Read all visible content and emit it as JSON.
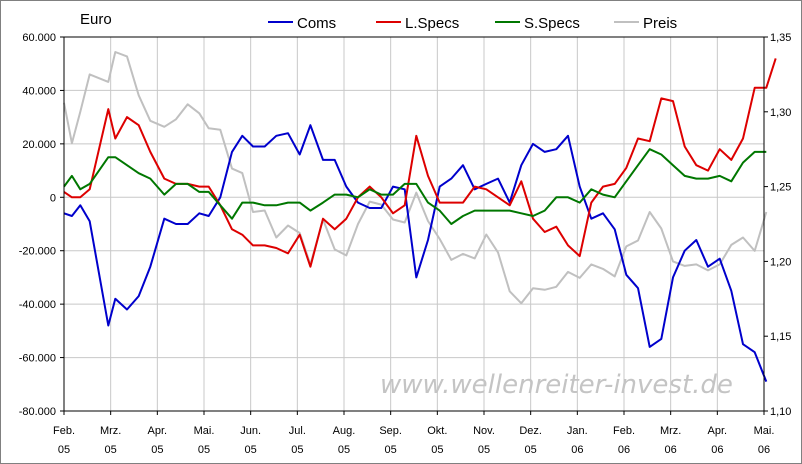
{
  "chart_data": {
    "type": "line",
    "y_unit_label": "Euro",
    "watermark": "www.wellenreiter-invest.de",
    "x_tick_labels": [
      {
        "month": "Feb.",
        "year": "05"
      },
      {
        "month": "Mrz.",
        "year": "05"
      },
      {
        "month": "Apr.",
        "year": "05"
      },
      {
        "month": "Mai.",
        "year": "05"
      },
      {
        "month": "Jun.",
        "year": "05"
      },
      {
        "month": "Jul.",
        "year": "05"
      },
      {
        "month": "Aug.",
        "year": "05"
      },
      {
        "month": "Sep.",
        "year": "05"
      },
      {
        "month": "Okt.",
        "year": "05"
      },
      {
        "month": "Nov.",
        "year": "05"
      },
      {
        "month": "Dez.",
        "year": "05"
      },
      {
        "month": "Jan.",
        "year": "06"
      },
      {
        "month": "Feb.",
        "year": "06"
      },
      {
        "month": "Mrz.",
        "year": "06"
      },
      {
        "month": "Apr.",
        "year": "06"
      },
      {
        "month": "Mai.",
        "year": "06"
      }
    ],
    "x_range_months": [
      0,
      15
    ],
    "y_left": {
      "range": [
        -80000,
        60000
      ],
      "ticks": [
        60000,
        40000,
        20000,
        0,
        -20000,
        -40000,
        -60000,
        -80000
      ],
      "tick_labels": [
        "60.000",
        "40.000",
        "20.000",
        "0",
        "-20.000",
        "-40.000",
        "-60.000",
        "-80.000"
      ]
    },
    "y_right": {
      "range": [
        1.1,
        1.35
      ],
      "ticks": [
        1.35,
        1.3,
        1.25,
        1.2,
        1.15,
        1.1
      ],
      "tick_labels": [
        "1,35",
        "1,30",
        "1,25",
        "1,20",
        "1,15",
        "1,10"
      ]
    },
    "grid": true,
    "legend_position": "top",
    "series": [
      {
        "name": "Coms",
        "color": "#0000cc",
        "axis": "left",
        "values": [
          [
            0.0,
            -6000
          ],
          [
            0.17,
            -7000
          ],
          [
            0.35,
            -3000
          ],
          [
            0.55,
            -9000
          ],
          [
            0.95,
            -48000
          ],
          [
            1.1,
            -38000
          ],
          [
            1.35,
            -42000
          ],
          [
            1.6,
            -37000
          ],
          [
            1.85,
            -26000
          ],
          [
            2.15,
            -8000
          ],
          [
            2.4,
            -10000
          ],
          [
            2.65,
            -10000
          ],
          [
            2.9,
            -6000
          ],
          [
            3.1,
            -7000
          ],
          [
            3.35,
            0
          ],
          [
            3.6,
            17000
          ],
          [
            3.82,
            23000
          ],
          [
            4.05,
            19000
          ],
          [
            4.3,
            19000
          ],
          [
            4.55,
            23000
          ],
          [
            4.8,
            24000
          ],
          [
            5.05,
            16000
          ],
          [
            5.28,
            27000
          ],
          [
            5.55,
            14000
          ],
          [
            5.8,
            14000
          ],
          [
            6.05,
            4000
          ],
          [
            6.3,
            -2000
          ],
          [
            6.55,
            -4000
          ],
          [
            6.8,
            -4000
          ],
          [
            7.05,
            4000
          ],
          [
            7.3,
            3000
          ],
          [
            7.55,
            -30000
          ],
          [
            7.8,
            -16000
          ],
          [
            8.05,
            4000
          ],
          [
            8.3,
            7000
          ],
          [
            8.55,
            12000
          ],
          [
            8.8,
            3000
          ],
          [
            9.05,
            5000
          ],
          [
            9.3,
            7000
          ],
          [
            9.55,
            -2000
          ],
          [
            9.8,
            12000
          ],
          [
            10.05,
            20000
          ],
          [
            10.3,
            17000
          ],
          [
            10.55,
            18000
          ],
          [
            10.8,
            23000
          ],
          [
            11.05,
            4000
          ],
          [
            11.3,
            -8000
          ],
          [
            11.55,
            -6000
          ],
          [
            11.8,
            -12000
          ],
          [
            12.05,
            -29000
          ],
          [
            12.3,
            -34000
          ],
          [
            12.55,
            -56000
          ],
          [
            12.8,
            -53000
          ],
          [
            13.05,
            -30000
          ],
          [
            13.3,
            -20000
          ],
          [
            13.55,
            -16000
          ],
          [
            13.8,
            -26000
          ],
          [
            14.05,
            -23000
          ],
          [
            14.3,
            -35000
          ],
          [
            14.55,
            -55000
          ],
          [
            14.8,
            -58000
          ],
          [
            15.05,
            -69000
          ]
        ]
      },
      {
        "name": "L.Specs",
        "color": "#dd0000",
        "axis": "left",
        "values": [
          [
            0.0,
            2000
          ],
          [
            0.17,
            0
          ],
          [
            0.35,
            0
          ],
          [
            0.55,
            3000
          ],
          [
            0.95,
            33000
          ],
          [
            1.1,
            22000
          ],
          [
            1.35,
            30000
          ],
          [
            1.6,
            27000
          ],
          [
            1.85,
            17000
          ],
          [
            2.15,
            7000
          ],
          [
            2.4,
            5000
          ],
          [
            2.65,
            5000
          ],
          [
            2.9,
            4000
          ],
          [
            3.1,
            4000
          ],
          [
            3.35,
            -3000
          ],
          [
            3.6,
            -12000
          ],
          [
            3.82,
            -14000
          ],
          [
            4.05,
            -18000
          ],
          [
            4.3,
            -18000
          ],
          [
            4.55,
            -19000
          ],
          [
            4.8,
            -21000
          ],
          [
            5.05,
            -14000
          ],
          [
            5.28,
            -26000
          ],
          [
            5.55,
            -8000
          ],
          [
            5.8,
            -12000
          ],
          [
            6.05,
            -8000
          ],
          [
            6.3,
            0
          ],
          [
            6.55,
            4000
          ],
          [
            6.8,
            0
          ],
          [
            7.05,
            -6000
          ],
          [
            7.3,
            -3000
          ],
          [
            7.55,
            23000
          ],
          [
            7.8,
            8000
          ],
          [
            8.05,
            -2000
          ],
          [
            8.3,
            -2000
          ],
          [
            8.55,
            -2000
          ],
          [
            8.8,
            4000
          ],
          [
            9.05,
            3000
          ],
          [
            9.3,
            0
          ],
          [
            9.55,
            -3000
          ],
          [
            9.8,
            6000
          ],
          [
            10.05,
            -8000
          ],
          [
            10.3,
            -13000
          ],
          [
            10.55,
            -11000
          ],
          [
            10.8,
            -18000
          ],
          [
            11.05,
            -22000
          ],
          [
            11.3,
            -2000
          ],
          [
            11.55,
            4000
          ],
          [
            11.8,
            5000
          ],
          [
            12.05,
            11000
          ],
          [
            12.3,
            22000
          ],
          [
            12.55,
            21000
          ],
          [
            12.8,
            37000
          ],
          [
            13.05,
            36000
          ],
          [
            13.3,
            19000
          ],
          [
            13.55,
            12000
          ],
          [
            13.8,
            10000
          ],
          [
            14.05,
            18000
          ],
          [
            14.3,
            14000
          ],
          [
            14.55,
            22000
          ],
          [
            14.8,
            41000
          ],
          [
            15.05,
            41000
          ],
          [
            15.25,
            52000
          ]
        ]
      },
      {
        "name": "S.Specs",
        "color": "#007700",
        "axis": "left",
        "values": [
          [
            0.0,
            4000
          ],
          [
            0.17,
            8000
          ],
          [
            0.35,
            3000
          ],
          [
            0.55,
            5000
          ],
          [
            0.95,
            15000
          ],
          [
            1.1,
            15000
          ],
          [
            1.35,
            12000
          ],
          [
            1.6,
            9000
          ],
          [
            1.85,
            7000
          ],
          [
            2.15,
            1000
          ],
          [
            2.4,
            5000
          ],
          [
            2.65,
            5000
          ],
          [
            2.9,
            2000
          ],
          [
            3.1,
            2000
          ],
          [
            3.35,
            -3000
          ],
          [
            3.6,
            -8000
          ],
          [
            3.82,
            -2000
          ],
          [
            4.05,
            -2000
          ],
          [
            4.3,
            -3000
          ],
          [
            4.55,
            -3000
          ],
          [
            4.8,
            -2000
          ],
          [
            5.05,
            -2000
          ],
          [
            5.28,
            -5000
          ],
          [
            5.55,
            -2000
          ],
          [
            5.8,
            1000
          ],
          [
            6.05,
            1000
          ],
          [
            6.3,
            0
          ],
          [
            6.55,
            3000
          ],
          [
            6.8,
            1000
          ],
          [
            7.05,
            1000
          ],
          [
            7.3,
            5000
          ],
          [
            7.55,
            5000
          ],
          [
            7.8,
            -2000
          ],
          [
            8.05,
            -5000
          ],
          [
            8.3,
            -10000
          ],
          [
            8.55,
            -7000
          ],
          [
            8.8,
            -5000
          ],
          [
            9.05,
            -5000
          ],
          [
            9.3,
            -5000
          ],
          [
            9.55,
            -5000
          ],
          [
            9.8,
            -6000
          ],
          [
            10.05,
            -7000
          ],
          [
            10.3,
            -5000
          ],
          [
            10.55,
            0
          ],
          [
            10.8,
            0
          ],
          [
            11.05,
            -2000
          ],
          [
            11.3,
            3000
          ],
          [
            11.55,
            1000
          ],
          [
            11.8,
            0
          ],
          [
            12.05,
            6000
          ],
          [
            12.3,
            12000
          ],
          [
            12.55,
            18000
          ],
          [
            12.8,
            16000
          ],
          [
            13.05,
            12000
          ],
          [
            13.3,
            8000
          ],
          [
            13.55,
            7000
          ],
          [
            13.8,
            7000
          ],
          [
            14.05,
            8000
          ],
          [
            14.3,
            6000
          ],
          [
            14.55,
            13000
          ],
          [
            14.8,
            17000
          ],
          [
            15.05,
            17000
          ]
        ]
      },
      {
        "name": "Preis",
        "color": "#c0c0c0",
        "axis": "right",
        "values": [
          [
            0.0,
            1.306
          ],
          [
            0.17,
            1.279
          ],
          [
            0.35,
            1.3
          ],
          [
            0.55,
            1.325
          ],
          [
            0.95,
            1.32
          ],
          [
            1.1,
            1.34
          ],
          [
            1.35,
            1.337
          ],
          [
            1.6,
            1.311
          ],
          [
            1.85,
            1.294
          ],
          [
            2.15,
            1.29
          ],
          [
            2.4,
            1.295
          ],
          [
            2.65,
            1.305
          ],
          [
            2.9,
            1.299
          ],
          [
            3.1,
            1.289
          ],
          [
            3.35,
            1.288
          ],
          [
            3.6,
            1.262
          ],
          [
            3.82,
            1.259
          ],
          [
            4.05,
            1.233
          ],
          [
            4.3,
            1.234
          ],
          [
            4.55,
            1.216
          ],
          [
            4.8,
            1.224
          ],
          [
            5.05,
            1.219
          ],
          [
            5.28,
            1.198
          ],
          [
            5.55,
            1.228
          ],
          [
            5.8,
            1.208
          ],
          [
            6.05,
            1.204
          ],
          [
            6.3,
            1.225
          ],
          [
            6.55,
            1.24
          ],
          [
            6.8,
            1.238
          ],
          [
            7.05,
            1.228
          ],
          [
            7.3,
            1.226
          ],
          [
            7.55,
            1.246
          ],
          [
            7.8,
            1.227
          ],
          [
            8.05,
            1.215
          ],
          [
            8.3,
            1.201
          ],
          [
            8.55,
            1.205
          ],
          [
            8.8,
            1.202
          ],
          [
            9.05,
            1.218
          ],
          [
            9.3,
            1.206
          ],
          [
            9.55,
            1.18
          ],
          [
            9.8,
            1.172
          ],
          [
            10.05,
            1.182
          ],
          [
            10.3,
            1.181
          ],
          [
            10.55,
            1.183
          ],
          [
            10.8,
            1.193
          ],
          [
            11.05,
            1.189
          ],
          [
            11.3,
            1.198
          ],
          [
            11.55,
            1.195
          ],
          [
            11.8,
            1.19
          ],
          [
            12.05,
            1.21
          ],
          [
            12.3,
            1.214
          ],
          [
            12.55,
            1.233
          ],
          [
            12.8,
            1.222
          ],
          [
            13.05,
            1.2
          ],
          [
            13.3,
            1.197
          ],
          [
            13.55,
            1.198
          ],
          [
            13.8,
            1.194
          ],
          [
            14.05,
            1.198
          ],
          [
            14.3,
            1.211
          ],
          [
            14.55,
            1.216
          ],
          [
            14.8,
            1.207
          ],
          [
            15.05,
            1.233
          ]
        ]
      }
    ]
  }
}
